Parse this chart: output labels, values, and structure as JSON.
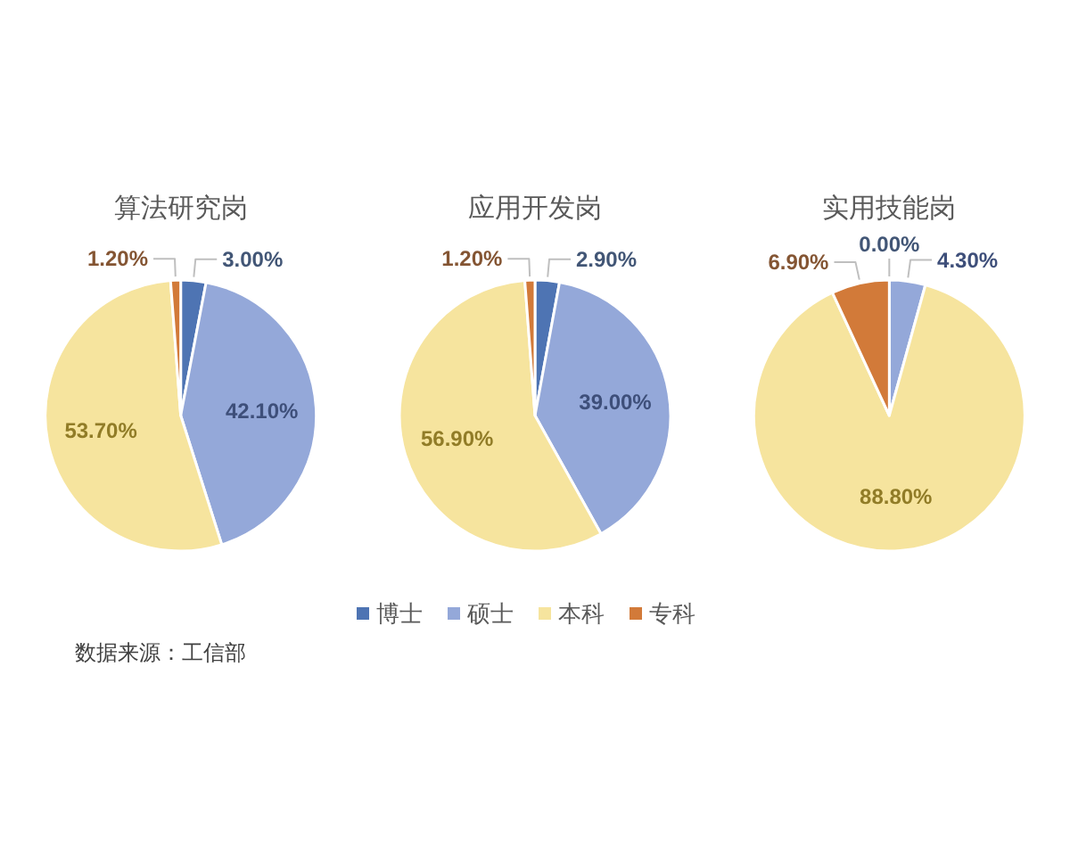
{
  "chart_data": [
    {
      "type": "pie",
      "title": "算法研究岗",
      "categories": [
        null,
        null,
        null,
        null
      ],
      "values": [
        3.0,
        42.1,
        53.7,
        1.2
      ],
      "colors": [
        "#4e74b3",
        "#94a8d9",
        "#f6e49e",
        "#d27a39"
      ],
      "value_labels": [
        "3.00%",
        "42.10%",
        "53.70%",
        "1.20%"
      ],
      "annotations": [
        "数据来源：工信部"
      ]
    },
    {
      "type": "pie",
      "title": "应用开发岗",
      "categories": [
        "博士",
        "硕士",
        "本科",
        "专科"
      ],
      "values": [
        2.9,
        39.0,
        56.9,
        1.2
      ],
      "colors": [
        "#4e74b3",
        "#94a8d9",
        "#f6e49e",
        "#d27a39"
      ],
      "value_labels": [
        "2.90%",
        "39.00%",
        "56.90%",
        "1.20%"
      ],
      "legend": "bottom"
    },
    {
      "type": "pie",
      "title": "实用技能岗",
      "categories": [
        null,
        null,
        null,
        null
      ],
      "values": [
        0.0,
        4.3,
        88.8,
        6.9
      ],
      "colors": [
        "#4e74b3",
        "#94a8d9",
        "#f6e49e",
        "#d27a39"
      ],
      "value_labels": [
        "0.00%",
        "4.30%",
        "88.80%",
        "6.90%"
      ]
    }
  ]
}
